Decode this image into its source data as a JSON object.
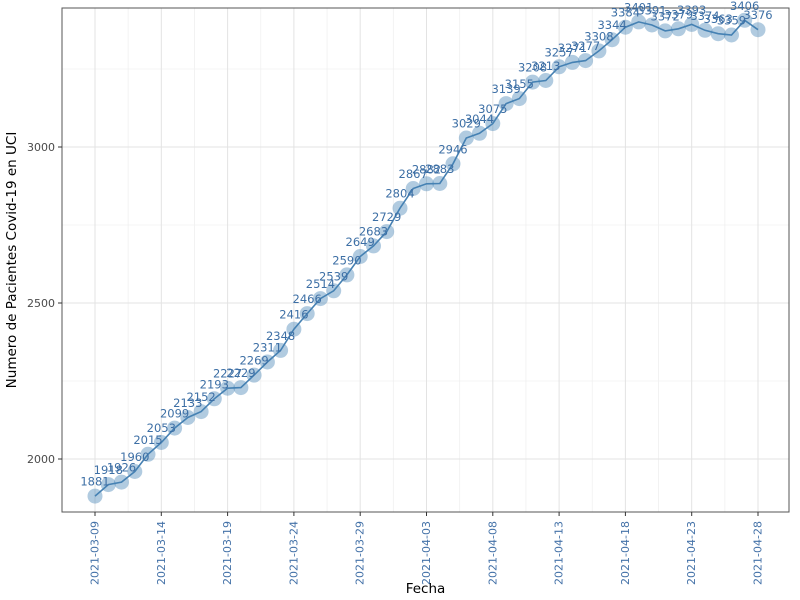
{
  "chart_data": {
    "type": "line",
    "title": "",
    "xlabel": "Fecha",
    "ylabel": "Numero de Pacientes Covid-19 en UCI",
    "x": [
      "2021-03-09",
      "2021-03-10",
      "2021-03-11",
      "2021-03-12",
      "2021-03-13",
      "2021-03-14",
      "2021-03-15",
      "2021-03-16",
      "2021-03-17",
      "2021-03-18",
      "2021-03-19",
      "2021-03-20",
      "2021-03-21",
      "2021-03-22",
      "2021-03-23",
      "2021-03-24",
      "2021-03-25",
      "2021-03-26",
      "2021-03-27",
      "2021-03-28",
      "2021-03-29",
      "2021-03-30",
      "2021-03-31",
      "2021-04-01",
      "2021-04-02",
      "2021-04-03",
      "2021-04-04",
      "2021-04-05",
      "2021-04-06",
      "2021-04-07",
      "2021-04-08",
      "2021-04-09",
      "2021-04-10",
      "2021-04-11",
      "2021-04-12",
      "2021-04-13",
      "2021-04-14",
      "2021-04-15",
      "2021-04-16",
      "2021-04-17",
      "2021-04-18",
      "2021-04-19",
      "2021-04-20",
      "2021-04-21",
      "2021-04-22",
      "2021-04-23",
      "2021-04-24",
      "2021-04-25",
      "2021-04-26",
      "2021-04-27",
      "2021-04-28"
    ],
    "values": [
      1881,
      1918,
      1926,
      1960,
      2015,
      2053,
      2099,
      2133,
      2152,
      2193,
      2227,
      2229,
      2269,
      2311,
      2348,
      2416,
      2466,
      2514,
      2539,
      2590,
      2649,
      2683,
      2729,
      2804,
      2867,
      2882,
      2883,
      2946,
      3029,
      3044,
      3075,
      3139,
      3155,
      3208,
      3213,
      3257,
      3271,
      3277,
      3308,
      3344,
      3384,
      3401,
      3391,
      3372,
      3379,
      3393,
      3374,
      3363,
      3359,
      3406,
      3376
    ],
    "x_tick_labels": [
      "2021-03-09",
      "2021-03-14",
      "2021-03-19",
      "2021-03-24",
      "2021-03-29",
      "2021-04-03",
      "2021-04-08",
      "2021-04-13",
      "2021-04-18",
      "2021-04-23",
      "2021-04-28"
    ],
    "x_tick_indices": [
      0,
      5,
      10,
      15,
      20,
      25,
      30,
      35,
      40,
      45,
      50
    ],
    "y_ticks": [
      2000,
      2500,
      3000
    ],
    "y_minor_ticks": [
      2250,
      2750,
      3250
    ],
    "ylim": [
      1830,
      3445
    ],
    "grid": true,
    "legend_position": "none",
    "colors": {
      "line": "#4680b2",
      "point_fill": "rgba(70,130,180,0.42)",
      "label_text": "#3d6fa5",
      "x_tick_text": "#4472a8",
      "y_tick_text": "#4a4a4a",
      "grid_major": "#e3e3e3",
      "grid_minor": "#f0f0f0",
      "panel_border": "#555555",
      "tick_mark": "#333333",
      "axis_title": "#000000"
    }
  }
}
